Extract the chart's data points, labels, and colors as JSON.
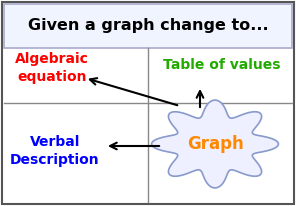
{
  "title": "Given a graph change to...",
  "title_fontsize": 11.5,
  "title_color": "#000000",
  "title_bg": "#ffffff",
  "label_algebraic": "Algebraic\nequation",
  "label_algebraic_color": "#ff0000",
  "label_table": "Table of values",
  "label_table_color": "#22aa00",
  "label_verbal": "Verbal\nDescription",
  "label_verbal_color": "#0000ff",
  "label_graph": "Graph",
  "label_graph_color": "#ff8800",
  "background_color": "#ffffff",
  "border_color": "#888888",
  "cloud_fill": "#eef0ff",
  "cloud_edge": "#8899cc",
  "figsize": [
    2.96,
    2.06
  ],
  "dpi": 100
}
